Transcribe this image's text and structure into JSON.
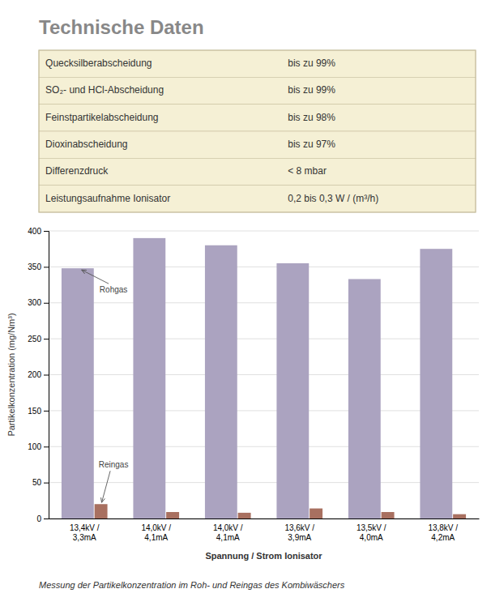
{
  "title": "Technische Daten",
  "table": [
    [
      "Quecksilberabscheidung",
      "bis zu 99%"
    ],
    [
      "SO₂- und HCl-Abscheidung",
      "bis zu 99%"
    ],
    [
      "Feinstpartikelabscheidung",
      "bis zu 98%"
    ],
    [
      "Dioxinabscheidung",
      "bis zu 97%"
    ],
    [
      "Differenzdruck",
      "< 8 mbar"
    ],
    [
      "Leistungsaufnahme Ionisator",
      "0,2 bis 0,3 W / (m³/h)"
    ]
  ],
  "caption": "Messung der Partikelkonzentration im Roh- und Reingas des Kombiwäschers",
  "chart_data": {
    "type": "bar",
    "categories": [
      "13,4kV /\n3,3mA",
      "14,0kV /\n4,1mA",
      "14,0kV /\n4,1mA",
      "13,6kV /\n3,9mA",
      "13,5kV /\n4,0mA",
      "13,8kV /\n4,2mA"
    ],
    "series": [
      {
        "name": "Rohgas",
        "color": "#aba3c0",
        "values": [
          348,
          390,
          380,
          355,
          333,
          375
        ]
      },
      {
        "name": "Reingas",
        "color": "#a87060",
        "values": [
          20,
          9,
          8,
          14,
          9,
          6
        ]
      }
    ],
    "xlabel": "Spannung / Strom Ionisator",
    "ylabel": "Partikelkonzentration (mg/Nm³)",
    "ylim": [
      0,
      400
    ],
    "yticks": [
      0,
      50,
      100,
      150,
      200,
      250,
      300,
      350,
      400
    ],
    "grid": true
  }
}
